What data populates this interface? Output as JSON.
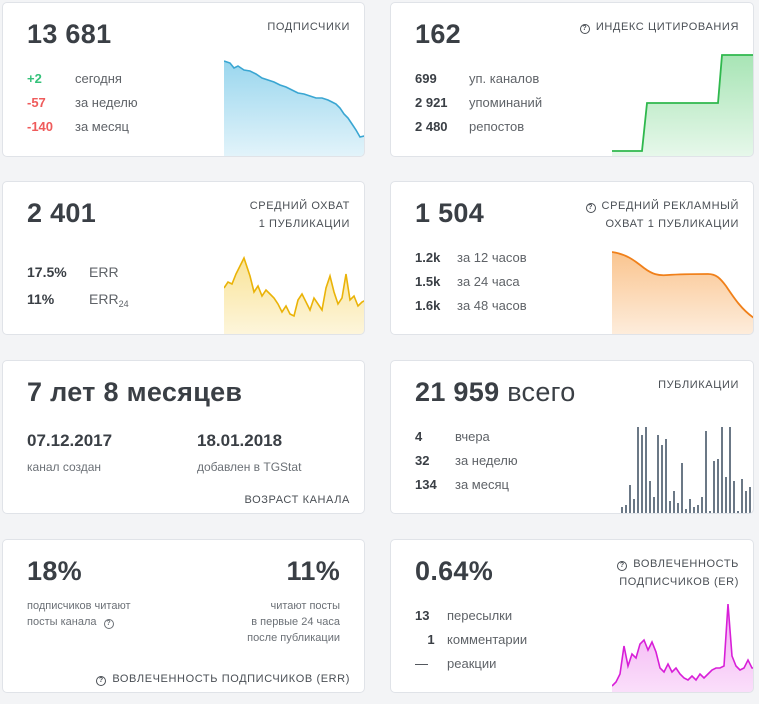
{
  "subscribers": {
    "count": "13 681",
    "caption": "ПОДПИСЧИКИ",
    "rows": [
      {
        "value": "+2",
        "label": "сегодня"
      },
      {
        "value": "-57",
        "label": "за неделю"
      },
      {
        "value": "-140",
        "label": "за месяц"
      }
    ],
    "color": "#47b5e0"
  },
  "citation": {
    "count": "162",
    "caption": "ИНДЕКС ЦИТИРОВАНИЯ",
    "rows": [
      {
        "value": "699",
        "label": "уп. каналов"
      },
      {
        "value": "2 921",
        "label": "упоминаний"
      },
      {
        "value": "2 480",
        "label": "репостов"
      }
    ],
    "color": "#3cc45a"
  },
  "reach": {
    "count": "2 401",
    "caption_line1": "СРЕДНИЙ ОХВАТ",
    "caption_line2": "1 ПУБЛИКАЦИИ",
    "err_value": "17.5%",
    "err_label": "ERR",
    "err24_value": "11%",
    "err24_label": "ERR",
    "err24_sub": "24",
    "color": "#f2c21b"
  },
  "ad_reach": {
    "count": "1 504",
    "caption_line1": "СРЕДНИЙ РЕКЛАМНЫЙ",
    "caption_line2": "ОХВАТ 1 ПУБЛИКАЦИИ",
    "rows": [
      {
        "value": "1.2k",
        "label": "за 12 часов"
      },
      {
        "value": "1.5k",
        "label": "за 24 часа"
      },
      {
        "value": "1.6k",
        "label": "за 48 часов"
      }
    ],
    "color": "#f58a1f"
  },
  "age": {
    "title": "7 лет 8 месяцев",
    "created_date": "07.12.2017",
    "created_label": "канал создан",
    "added_date": "18.01.2018",
    "added_label": "добавлен в TGStat",
    "caption": "ВОЗРАСТ КАНАЛА"
  },
  "posts": {
    "count": "21 959",
    "count_suffix": "всего",
    "caption": "ПУБЛИКАЦИИ",
    "rows": [
      {
        "value": "4",
        "label": "вчера"
      },
      {
        "value": "32",
        "label": "за неделю"
      },
      {
        "value": "134",
        "label": "за месяц"
      }
    ],
    "color": "#6b7886"
  },
  "err_card": {
    "left_value": "18%",
    "left_text_1": "подписчиков читают",
    "left_text_2": "посты канала",
    "right_value": "11%",
    "right_text_1": "читают посты",
    "right_text_2": "в первые 24 часа",
    "right_text_3": "после публикации",
    "caption": "ВОВЛЕЧЕННОСТЬ ПОДПИСЧИКОВ (ERR)"
  },
  "er_card": {
    "count": "0.64%",
    "caption_line1": "ВОВЛЕЧЕННОСТЬ",
    "caption_line2": "ПОДПИСЧИКОВ (ER)",
    "rows": [
      {
        "value": "13",
        "label": "пересылки"
      },
      {
        "value": "1",
        "label": "комментарии"
      },
      {
        "value": "—",
        "label": "реакции"
      }
    ],
    "color": "#e02fe0"
  }
}
